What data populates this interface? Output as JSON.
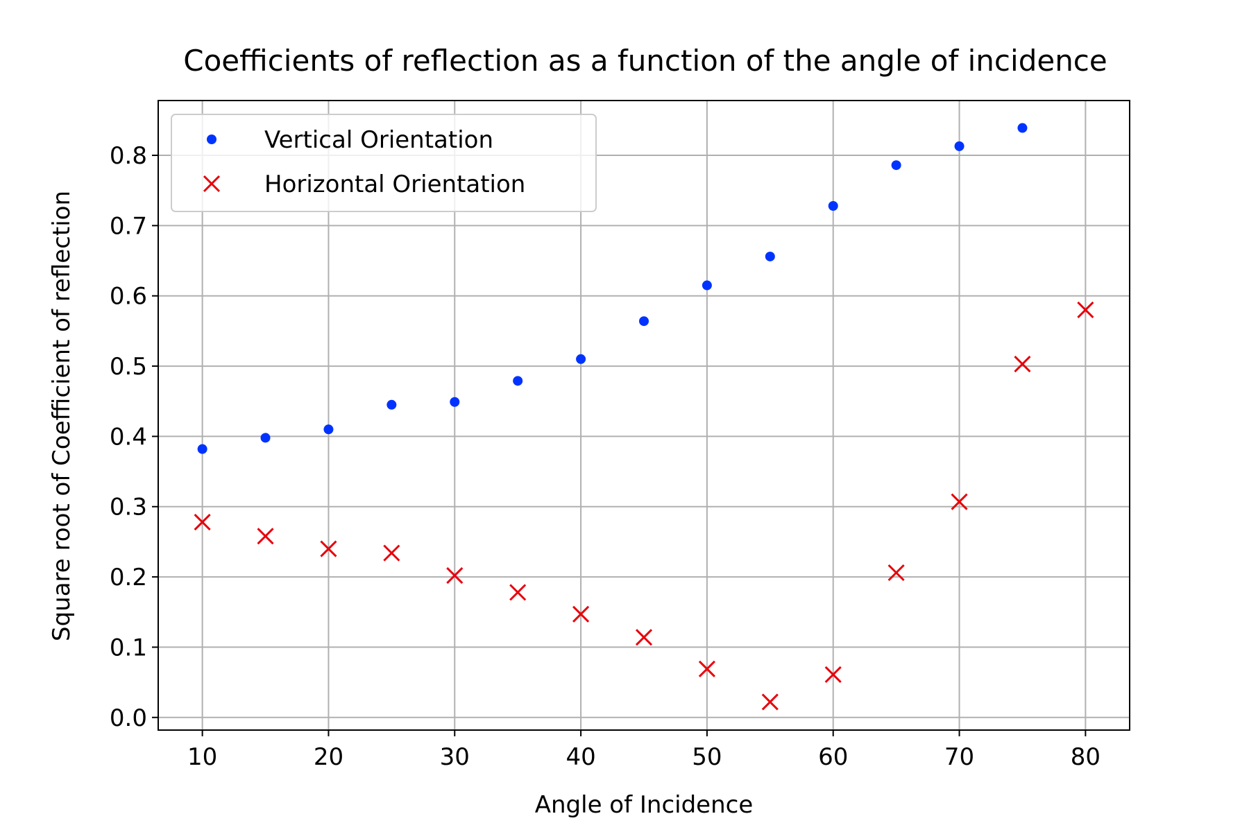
{
  "chart_data": {
    "type": "scatter",
    "title": "Coefficients of reflection as a function of the angle of incidence",
    "xlabel": "Angle of Incidence",
    "ylabel": "Square root of Coefficient of reflection",
    "xlim": [
      6.5,
      83.5
    ],
    "ylim": [
      -0.018,
      0.878
    ],
    "xticks": [
      10,
      20,
      30,
      40,
      50,
      60,
      70,
      80
    ],
    "yticks": [
      0.0,
      0.1,
      0.2,
      0.3,
      0.4,
      0.5,
      0.6,
      0.7,
      0.8
    ],
    "grid": true,
    "legend_position": "top-left",
    "series": [
      {
        "name": "Vertical Orientation",
        "marker": "dot",
        "color": "#0033ff",
        "x": [
          10,
          15,
          20,
          25,
          30,
          35,
          40,
          45,
          50,
          55,
          60,
          65,
          70,
          75
        ],
        "y": [
          0.382,
          0.398,
          0.41,
          0.445,
          0.449,
          0.479,
          0.51,
          0.564,
          0.615,
          0.656,
          0.728,
          0.786,
          0.813,
          0.839
        ]
      },
      {
        "name": "Horizontal Orientation",
        "marker": "x",
        "color": "#e8000b",
        "x": [
          10,
          15,
          20,
          25,
          30,
          35,
          40,
          45,
          50,
          55,
          60,
          65,
          70,
          75,
          80
        ],
        "y": [
          0.278,
          0.258,
          0.24,
          0.234,
          0.202,
          0.178,
          0.147,
          0.114,
          0.069,
          0.022,
          0.061,
          0.206,
          0.307,
          0.503,
          0.58
        ]
      }
    ]
  }
}
